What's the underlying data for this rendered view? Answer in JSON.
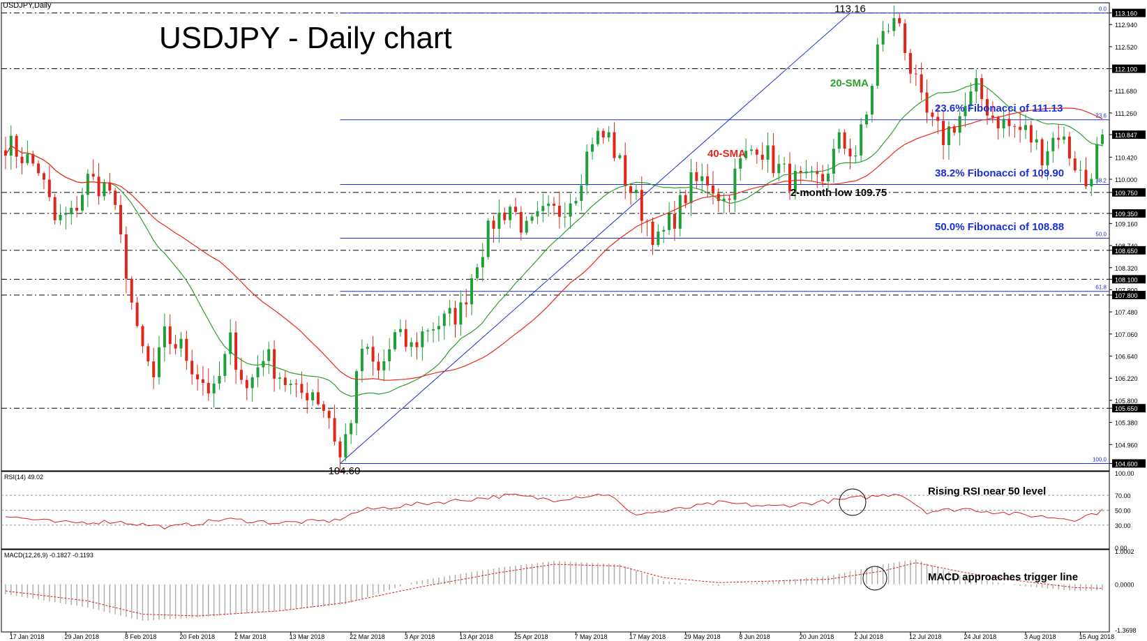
{
  "symbol_label": "USDJPY,Daily",
  "title": "USDJPY - Daily chart",
  "colors": {
    "bull": "#1f9e3a",
    "bear": "#e0261b",
    "sma20": "#2ca02c",
    "sma40": "#e8291c",
    "fib": "#1a2fd6",
    "grid": "#000000",
    "rsi": "#d62020",
    "macd_hist": "#b0b0b0",
    "macd_signal": "#d62020",
    "price_box": "#000000"
  },
  "annotations": {
    "high_label": "113.16",
    "low_label": "104.60",
    "sma20_label": "20-SMA",
    "sma40_label": "40-SMA",
    "fib236": "23.6% Fibonacci of 111.13",
    "fib382": "38.2% Fibonacci of 109.90",
    "fib500": "50.0% Fibonacci of 108.88",
    "two_month_low": "2-month low 109.75",
    "rsi_note": "Rising RSI near 50 level",
    "macd_note": "MACD approaches trigger line"
  },
  "fib_levels": [
    {
      "tag": "0.0",
      "price": 113.16
    },
    {
      "tag": "23.6",
      "price": 111.13
    },
    {
      "tag": "38.2",
      "price": 109.9
    },
    {
      "tag": "50.0",
      "price": 108.88
    },
    {
      "tag": "61.8",
      "price": 107.87
    },
    {
      "tag": "100.0",
      "price": 104.6
    }
  ],
  "chart_data": [
    {
      "type": "candlestick",
      "title": "USDJPY - Daily chart",
      "ylim": [
        104.5,
        113.3
      ],
      "price_axis_ticks": [
        "113.160",
        "112.940",
        "112.520",
        "112.100",
        "111.680",
        "111.260",
        "110.847",
        "110.420",
        "110.000",
        "109.750",
        "109.350",
        "109.160",
        "108.740",
        "108.650",
        "108.320",
        "108.100",
        "107.900",
        "107.800",
        "107.480",
        "107.060",
        "106.640",
        "106.220",
        "105.800",
        "105.650",
        "105.380",
        "104.960",
        "104.600"
      ],
      "highlighted_prices": [
        "113.160",
        "112.100",
        "110.847",
        "109.750",
        "109.350",
        "108.650",
        "108.100",
        "107.800",
        "105.650",
        "104.600"
      ],
      "horizontal_levels": [
        113.16,
        112.1,
        109.75,
        109.35,
        108.65,
        108.1,
        107.8,
        105.65
      ],
      "x_labels": [
        "17 Jan 2018",
        "29 Jan 2018",
        "8 Feb 2018",
        "20 Feb 2018",
        "2 Mar 2018",
        "13 Mar 2018",
        "22 Mar 2018",
        "3 Apr 2018",
        "13 Apr 2018",
        "25 Apr 2018",
        "7 May 2018",
        "17 May 2018",
        "29 May 2018",
        "8 Jun 2018",
        "20 Jun 2018",
        "2 Jul 2018",
        "12 Jul 2018",
        "24 Jul 2018",
        "3 Aug 2018",
        "15 Aug 2018"
      ],
      "anchors": [
        [
          0,
          110.7
        ],
        [
          6,
          110.2
        ],
        [
          9,
          109.2
        ],
        [
          12,
          109.3
        ],
        [
          15,
          110.0
        ],
        [
          19,
          109.8
        ],
        [
          22,
          108.3
        ],
        [
          24,
          107.0
        ],
        [
          27,
          106.2
        ],
        [
          29,
          107.0
        ],
        [
          32,
          106.8
        ],
        [
          35,
          106.3
        ],
        [
          38,
          105.9
        ],
        [
          41,
          106.9
        ],
        [
          44,
          106.0
        ],
        [
          47,
          106.7
        ],
        [
          50,
          106.3
        ],
        [
          53,
          105.9
        ],
        [
          56,
          106.0
        ],
        [
          59,
          105.5
        ],
        [
          61,
          104.7
        ],
        [
          63,
          105.5
        ],
        [
          65,
          106.8
        ],
        [
          68,
          106.3
        ],
        [
          71,
          107.0
        ],
        [
          74,
          106.8
        ],
        [
          77,
          107.2
        ],
        [
          80,
          107.3
        ],
        [
          83,
          107.5
        ],
        [
          86,
          108.5
        ],
        [
          89,
          109.2
        ],
        [
          92,
          109.5
        ],
        [
          95,
          109.0
        ],
        [
          98,
          109.3
        ],
        [
          101,
          109.4
        ],
        [
          104,
          109.8
        ],
        [
          107,
          110.8
        ],
        [
          110,
          110.8
        ],
        [
          113,
          110.0
        ],
        [
          116,
          109.4
        ],
        [
          119,
          108.8
        ],
        [
          122,
          109.3
        ],
        [
          125,
          109.9
        ],
        [
          128,
          110.0
        ],
        [
          131,
          109.6
        ],
        [
          134,
          110.3
        ],
        [
          137,
          110.7
        ],
        [
          140,
          110.3
        ],
        [
          143,
          110.0
        ],
        [
          146,
          109.9
        ],
        [
          149,
          110.0
        ],
        [
          152,
          110.7
        ],
        [
          155,
          110.5
        ],
        [
          157,
          111.2
        ],
        [
          159,
          112.5
        ],
        [
          161,
          112.9
        ],
        [
          163,
          113.0
        ],
        [
          165,
          112.1
        ],
        [
          167,
          111.4
        ],
        [
          169,
          111.0
        ],
        [
          171,
          110.8
        ],
        [
          174,
          111.2
        ],
        [
          177,
          111.7
        ],
        [
          180,
          111.2
        ],
        [
          183,
          111.0
        ],
        [
          186,
          110.9
        ],
        [
          189,
          110.5
        ],
        [
          192,
          110.9
        ],
        [
          195,
          110.3
        ],
        [
          197,
          109.9
        ],
        [
          200,
          110.85
        ]
      ],
      "n_days": 201
    },
    {
      "type": "line",
      "title": "RSI(14) 49.02",
      "ylim": [
        0,
        100
      ],
      "ticks": [
        "100.00",
        "70.00",
        "50.00",
        "30.00",
        "0.00"
      ],
      "anchors": [
        [
          0,
          42
        ],
        [
          10,
          33
        ],
        [
          20,
          35
        ],
        [
          30,
          27
        ],
        [
          40,
          38
        ],
        [
          50,
          33
        ],
        [
          60,
          36
        ],
        [
          65,
          50
        ],
        [
          75,
          58
        ],
        [
          85,
          65
        ],
        [
          92,
          70
        ],
        [
          100,
          64
        ],
        [
          104,
          68
        ],
        [
          110,
          72
        ],
        [
          114,
          45
        ],
        [
          120,
          48
        ],
        [
          130,
          60
        ],
        [
          140,
          55
        ],
        [
          150,
          62
        ],
        [
          160,
          70
        ],
        [
          163,
          73
        ],
        [
          168,
          48
        ],
        [
          175,
          52
        ],
        [
          185,
          44
        ],
        [
          195,
          38
        ],
        [
          200,
          49
        ]
      ]
    },
    {
      "type": "bar",
      "title": "MACD(12,26,9) -0.1827 -0.1193",
      "ylim": [
        -1.3698,
        1.0002
      ],
      "ticks": [
        "1.0002",
        "0.0000",
        "-1.3698"
      ],
      "hist_anchors": [
        [
          0,
          -0.3
        ],
        [
          15,
          -0.7
        ],
        [
          25,
          -1.1
        ],
        [
          35,
          -1.0
        ],
        [
          50,
          -0.8
        ],
        [
          62,
          -0.6
        ],
        [
          75,
          0.1
        ],
        [
          90,
          0.5
        ],
        [
          100,
          0.7
        ],
        [
          112,
          0.6
        ],
        [
          120,
          0.1
        ],
        [
          130,
          -0.05
        ],
        [
          140,
          0.1
        ],
        [
          150,
          0.25
        ],
        [
          160,
          0.6
        ],
        [
          166,
          0.75
        ],
        [
          175,
          0.2
        ],
        [
          185,
          -0.05
        ],
        [
          195,
          -0.2
        ],
        [
          200,
          -0.18
        ]
      ],
      "signal_anchors": [
        [
          0,
          -0.2
        ],
        [
          15,
          -0.5
        ],
        [
          25,
          -0.9
        ],
        [
          35,
          -0.95
        ],
        [
          50,
          -0.8
        ],
        [
          62,
          -0.55
        ],
        [
          75,
          -0.1
        ],
        [
          90,
          0.35
        ],
        [
          100,
          0.6
        ],
        [
          112,
          0.55
        ],
        [
          120,
          0.2
        ],
        [
          130,
          0.05
        ],
        [
          140,
          0.1
        ],
        [
          150,
          0.15
        ],
        [
          160,
          0.4
        ],
        [
          166,
          0.65
        ],
        [
          175,
          0.35
        ],
        [
          185,
          0.1
        ],
        [
          195,
          -0.1
        ],
        [
          200,
          -0.12
        ]
      ]
    }
  ]
}
